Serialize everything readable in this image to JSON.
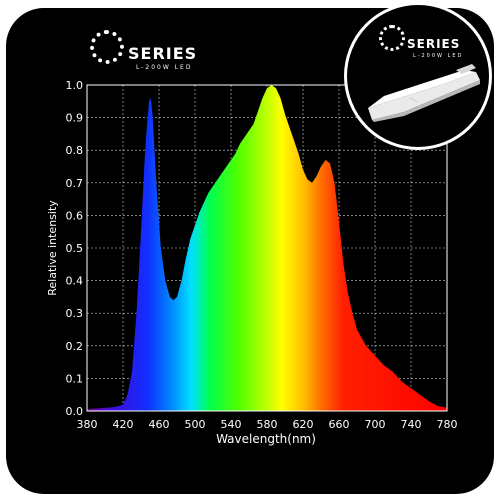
{
  "brand": {
    "series_word": "SERIES",
    "model": "L-200W LED"
  },
  "badge": {
    "series_word": "SERIES",
    "model": "L-200W LED"
  },
  "colors": {
    "background": "#000000",
    "grid": "#cfcfcf",
    "text": "#ffffff"
  },
  "chart_data": {
    "type": "area",
    "title": "",
    "xlabel": "Wavelength(nm)",
    "ylabel": "Relative intensity",
    "xlim": [
      380,
      780
    ],
    "ylim": [
      0,
      1.0
    ],
    "x_ticks": [
      380,
      420,
      460,
      500,
      540,
      580,
      620,
      660,
      700,
      740,
      780
    ],
    "y_ticks": [
      0.0,
      0.1,
      0.2,
      0.3,
      0.4,
      0.5,
      0.6,
      0.7,
      0.8,
      0.9,
      1.0
    ],
    "x_tick_labels": [
      "380",
      "420",
      "460",
      "500",
      "540",
      "580",
      "620",
      "660",
      "700",
      "740",
      "780"
    ],
    "y_tick_labels": [
      "0.0",
      "0.1",
      "0.2",
      "0.3",
      "0.4",
      "0.5",
      "0.6",
      "0.7",
      "0.8",
      "0.9",
      "1.0"
    ],
    "grid": true,
    "fill": "visible-spectrum gradient",
    "series": [
      {
        "x": [
          380,
          400,
          410,
          415,
          420,
          425,
          430,
          435,
          440,
          445,
          449,
          451,
          453,
          457,
          462,
          467,
          472,
          476,
          480,
          485,
          490,
          495,
          500,
          505,
          510,
          515,
          520,
          525,
          530,
          535,
          540,
          545,
          550,
          555,
          560,
          565,
          570,
          575,
          580,
          585,
          590,
          595,
          600,
          605,
          610,
          615,
          620,
          625,
          630,
          635,
          640,
          645,
          650,
          655,
          660,
          665,
          670,
          675,
          680,
          690,
          700,
          710,
          720,
          730,
          740,
          750,
          760,
          770,
          780
        ],
        "values": [
          0.005,
          0.01,
          0.012,
          0.015,
          0.02,
          0.05,
          0.12,
          0.3,
          0.55,
          0.82,
          0.95,
          0.96,
          0.9,
          0.7,
          0.5,
          0.4,
          0.35,
          0.34,
          0.35,
          0.4,
          0.47,
          0.53,
          0.57,
          0.61,
          0.64,
          0.67,
          0.69,
          0.71,
          0.73,
          0.75,
          0.77,
          0.79,
          0.82,
          0.84,
          0.86,
          0.88,
          0.92,
          0.96,
          0.99,
          1.0,
          0.99,
          0.96,
          0.91,
          0.87,
          0.83,
          0.79,
          0.74,
          0.71,
          0.7,
          0.72,
          0.75,
          0.77,
          0.76,
          0.7,
          0.58,
          0.45,
          0.36,
          0.3,
          0.25,
          0.2,
          0.17,
          0.14,
          0.12,
          0.09,
          0.07,
          0.05,
          0.03,
          0.015,
          0.01
        ]
      }
    ]
  }
}
